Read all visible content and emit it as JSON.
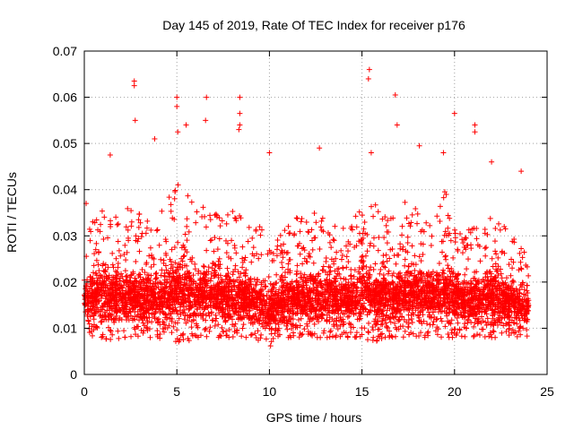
{
  "chart_data": {
    "type": "scatter",
    "title": "Day 145 of 2019, Rate Of TEC Index for receiver p176",
    "xlabel": "GPS time / hours",
    "ylabel": "ROTI / TECUs",
    "xlim": [
      0,
      25
    ],
    "ylim": [
      0,
      0.07
    ],
    "xticks": [
      0,
      5,
      10,
      15,
      20,
      25
    ],
    "yticks": [
      0,
      0.01,
      0.02,
      0.03,
      0.04,
      0.05,
      0.06,
      0.07
    ],
    "xtick_labels": [
      "0",
      "5",
      "10",
      "15",
      "20",
      "25"
    ],
    "ytick_labels": [
      "0",
      "0.01",
      "0.02",
      "0.03",
      "0.04",
      "0.05",
      "0.06",
      "0.07"
    ],
    "grid": true,
    "marker": "+",
    "color": "#ff0000",
    "data_range_x": [
      0,
      24
    ],
    "notable_points": [
      {
        "x": 2.7,
        "y": 0.0635
      },
      {
        "x": 2.7,
        "y": 0.0625
      },
      {
        "x": 2.75,
        "y": 0.055
      },
      {
        "x": 5.0,
        "y": 0.06
      },
      {
        "x": 5.0,
        "y": 0.058
      },
      {
        "x": 5.05,
        "y": 0.0525
      },
      {
        "x": 5.5,
        "y": 0.054
      },
      {
        "x": 6.6,
        "y": 0.06
      },
      {
        "x": 6.55,
        "y": 0.055
      },
      {
        "x": 8.4,
        "y": 0.06
      },
      {
        "x": 8.4,
        "y": 0.054
      },
      {
        "x": 8.35,
        "y": 0.053
      },
      {
        "x": 8.4,
        "y": 0.0565
      },
      {
        "x": 15.4,
        "y": 0.066
      },
      {
        "x": 15.35,
        "y": 0.064
      },
      {
        "x": 15.5,
        "y": 0.048
      },
      {
        "x": 16.8,
        "y": 0.0605
      },
      {
        "x": 16.9,
        "y": 0.054
      },
      {
        "x": 20.0,
        "y": 0.0565
      },
      {
        "x": 21.1,
        "y": 0.054
      },
      {
        "x": 21.1,
        "y": 0.0525
      },
      {
        "x": 1.4,
        "y": 0.0475
      },
      {
        "x": 3.8,
        "y": 0.051
      },
      {
        "x": 10.0,
        "y": 0.048
      },
      {
        "x": 12.7,
        "y": 0.049
      },
      {
        "x": 18.1,
        "y": 0.0495
      },
      {
        "x": 19.4,
        "y": 0.048
      },
      {
        "x": 22.0,
        "y": 0.046
      },
      {
        "x": 23.6,
        "y": 0.044
      },
      {
        "x": 0.1,
        "y": 0.037
      }
    ],
    "profile_hours": [
      0,
      0.5,
      1,
      1.5,
      2,
      2.5,
      3,
      3.5,
      4,
      4.5,
      5,
      5.5,
      6,
      6.5,
      7,
      7.5,
      8,
      8.5,
      9,
      9.5,
      10,
      10.5,
      11,
      11.5,
      12,
      12.5,
      13,
      13.5,
      14,
      14.5,
      15,
      15.5,
      16,
      16.5,
      17,
      17.5,
      18,
      18.5,
      19,
      19.5,
      20,
      20.5,
      21,
      21.5,
      22,
      22.5,
      23,
      23.5,
      24
    ],
    "profile_low": [
      0.01,
      0.008,
      0.008,
      0.007,
      0.008,
      0.008,
      0.008,
      0.008,
      0.008,
      0.007,
      0.007,
      0.007,
      0.008,
      0.008,
      0.008,
      0.008,
      0.008,
      0.008,
      0.008,
      0.007,
      0.006,
      0.007,
      0.008,
      0.008,
      0.008,
      0.008,
      0.008,
      0.008,
      0.008,
      0.008,
      0.008,
      0.007,
      0.007,
      0.008,
      0.008,
      0.008,
      0.008,
      0.008,
      0.008,
      0.008,
      0.008,
      0.008,
      0.008,
      0.008,
      0.008,
      0.008,
      0.008,
      0.008,
      0.008
    ],
    "profile_high": [
      0.028,
      0.034,
      0.036,
      0.038,
      0.036,
      0.036,
      0.036,
      0.034,
      0.036,
      0.038,
      0.042,
      0.04,
      0.036,
      0.038,
      0.036,
      0.034,
      0.036,
      0.034,
      0.032,
      0.032,
      0.03,
      0.032,
      0.032,
      0.034,
      0.034,
      0.036,
      0.034,
      0.034,
      0.032,
      0.034,
      0.036,
      0.038,
      0.036,
      0.036,
      0.036,
      0.038,
      0.036,
      0.034,
      0.036,
      0.04,
      0.034,
      0.032,
      0.032,
      0.032,
      0.036,
      0.032,
      0.032,
      0.03,
      0.026
    ]
  }
}
